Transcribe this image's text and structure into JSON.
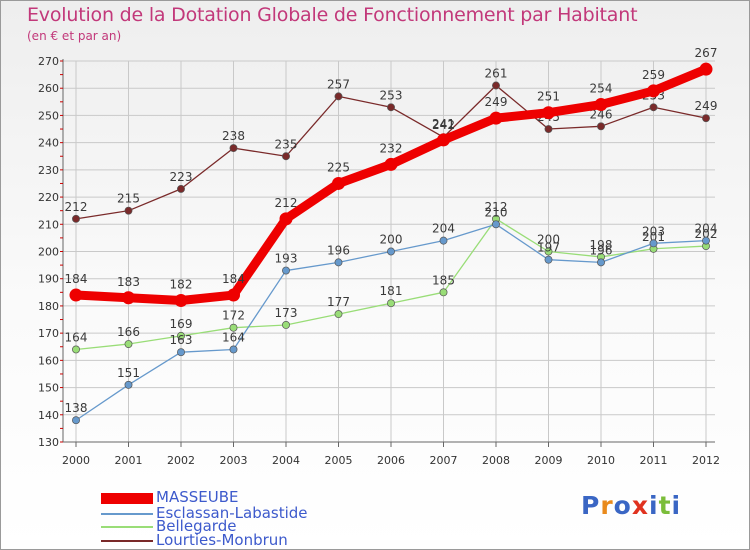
{
  "colors": {
    "title": "#c2387a",
    "legend_text": "#3d5acc",
    "axis": "#666666",
    "grid": "#c9c9c9",
    "tick_red": "#cc0000"
  },
  "logo": {
    "text": "Proxiti"
  },
  "chart_data": {
    "type": "line",
    "title": "Evolution de la Dotation Globale de Fonctionnement par Habitant",
    "subtitle": "(en € et par an)",
    "xlabel": "",
    "ylabel": "",
    "categories": [
      "2000",
      "2001",
      "2002",
      "2003",
      "2004",
      "2005",
      "2006",
      "2007",
      "2008",
      "2009",
      "2010",
      "2011",
      "2012"
    ],
    "ylim": [
      130,
      270
    ],
    "yticks": [
      "130",
      "140",
      "150",
      "160",
      "170",
      "180",
      "190",
      "200",
      "210",
      "220",
      "230",
      "240",
      "250",
      "260",
      "270"
    ],
    "grid": true,
    "legend_position": "bottom-left",
    "series": [
      {
        "name": "Lourties-Monbrun",
        "color": "#7a2a2a",
        "style": "thin",
        "values": [
          212,
          215,
          223,
          238,
          235,
          257,
          253,
          242,
          261,
          245,
          246,
          253,
          249
        ],
        "labels": [
          "212",
          "215",
          "223",
          "238",
          "235",
          "257",
          "253",
          "242",
          "261",
          "245",
          "246",
          "253",
          "249"
        ]
      },
      {
        "name": "Bellegarde",
        "color": "#99dd77",
        "style": "thin",
        "values": [
          164,
          166,
          169,
          172,
          173,
          177,
          181,
          185,
          212,
          200,
          198,
          201,
          202
        ],
        "labels": [
          "164",
          "166",
          "169",
          "172",
          "173",
          "177",
          "181",
          "185",
          "212",
          "200",
          "198",
          "201",
          "202"
        ]
      },
      {
        "name": "Esclassan-Labastide",
        "color": "#6699cc",
        "style": "thin",
        "values": [
          138,
          151,
          163,
          164,
          193,
          196,
          200,
          204,
          210,
          197,
          196,
          203,
          204
        ],
        "labels": [
          "138",
          "151",
          "163",
          "164",
          "193",
          "196",
          "200",
          "204",
          "210",
          "197",
          "196",
          "203",
          "204"
        ]
      },
      {
        "name": "MASSEUBE",
        "color": "#ee0000",
        "style": "thick",
        "values": [
          184,
          183,
          182,
          184,
          212,
          225,
          232,
          241,
          249,
          251,
          254,
          259,
          267
        ],
        "labels": [
          "184",
          "183",
          "182",
          "184",
          "212",
          "225",
          "232",
          "241",
          "249",
          "251",
          "254",
          "259",
          "267"
        ]
      }
    ],
    "legend": [
      "MASSEUBE",
      "Esclassan-Labastide",
      "Bellegarde",
      "Lourties-Monbrun"
    ]
  }
}
